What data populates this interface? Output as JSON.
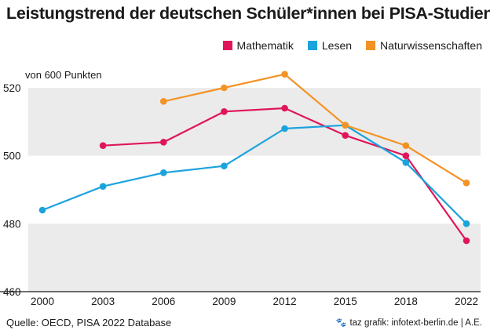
{
  "title": "Leistungstrend der deutschen Schüler*innen bei PISA-Studien",
  "unit_label": "von 600 Punkten",
  "source": "Quelle: OECD, PISA 2022 Database",
  "credit": "taz grafik: infotext-berlin.de | A.E.",
  "credit_icon": "paw-icon",
  "colors": {
    "Mathematik": "#e0155a",
    "Lesen": "#1ba3dd",
    "Naturwissenschaften": "#f39325",
    "band": "#ebebeb"
  },
  "chart_data": {
    "type": "line",
    "title": "Leistungstrend der deutschen Schüler*innen bei PISA-Studien",
    "ylabel": "von 600 Punkten",
    "xlabel": "",
    "x": [
      2000,
      2003,
      2006,
      2009,
      2012,
      2015,
      2018,
      2022
    ],
    "x_tick_labels": [
      "2000",
      "2003",
      "2006",
      "2009",
      "2012",
      "2015",
      "2018",
      "2022"
    ],
    "y_ticks": [
      460,
      480,
      500,
      520
    ],
    "ylim": [
      460,
      538
    ],
    "legend_position": "top-right",
    "series": [
      {
        "name": "Mathematik",
        "x": [
          2003,
          2006,
          2009,
          2012,
          2015,
          2018,
          2022
        ],
        "values": [
          503,
          504,
          513,
          514,
          506,
          500,
          475
        ]
      },
      {
        "name": "Lesen",
        "x": [
          2000,
          2003,
          2006,
          2009,
          2012,
          2015,
          2018,
          2022
        ],
        "values": [
          484,
          491,
          495,
          497,
          508,
          509,
          498,
          480
        ]
      },
      {
        "name": "Naturwissenschaften",
        "x": [
          2006,
          2009,
          2012,
          2015,
          2018,
          2022
        ],
        "values": [
          516,
          520,
          524,
          509,
          503,
          492
        ]
      }
    ]
  }
}
